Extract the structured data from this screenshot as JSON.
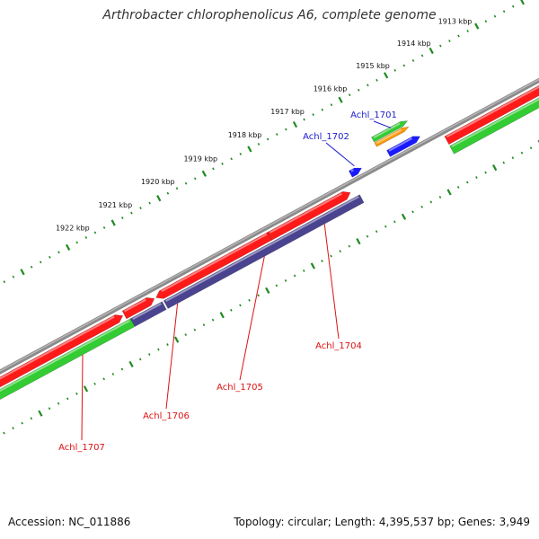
{
  "header": {
    "title": "Arthrobacter chlorophenolicus A6, complete genome"
  },
  "footer": {
    "accession": "Accession: NC_011886",
    "summary": "Topology: circular; Length: 4,395,537 bp; Genes: 3,949"
  },
  "colors": {
    "backbone": "#8a8a8a",
    "ticks": "#1f8a1f",
    "forward_cds": "#ff1a1a",
    "reverse_cds": "#33cc33",
    "other_cds": "#4a4490",
    "rna": "#1a1aff",
    "misc": "#ff9900",
    "label_blue": "#1a1acc",
    "label_red": "#dd1111"
  },
  "kbp_ticks": [
    {
      "label": "1913 kbp"
    },
    {
      "label": "1914 kbp"
    },
    {
      "label": "1915 kbp"
    },
    {
      "label": "1916 kbp"
    },
    {
      "label": "1917 kbp"
    },
    {
      "label": "1918 kbp"
    },
    {
      "label": "1919 kbp"
    },
    {
      "label": "1920 kbp"
    },
    {
      "label": "1921 kbp"
    },
    {
      "label": "1922 kbp"
    }
  ],
  "gene_labels": [
    {
      "text": "Achl_1701",
      "color_key": "label_blue"
    },
    {
      "text": "Achl_1702",
      "color_key": "label_blue"
    },
    {
      "text": "Achl_1704",
      "color_key": "label_red"
    },
    {
      "text": "Achl_1705",
      "color_key": "label_red"
    },
    {
      "text": "Achl_1706",
      "color_key": "label_red"
    },
    {
      "text": "Achl_1707",
      "color_key": "label_red"
    }
  ]
}
